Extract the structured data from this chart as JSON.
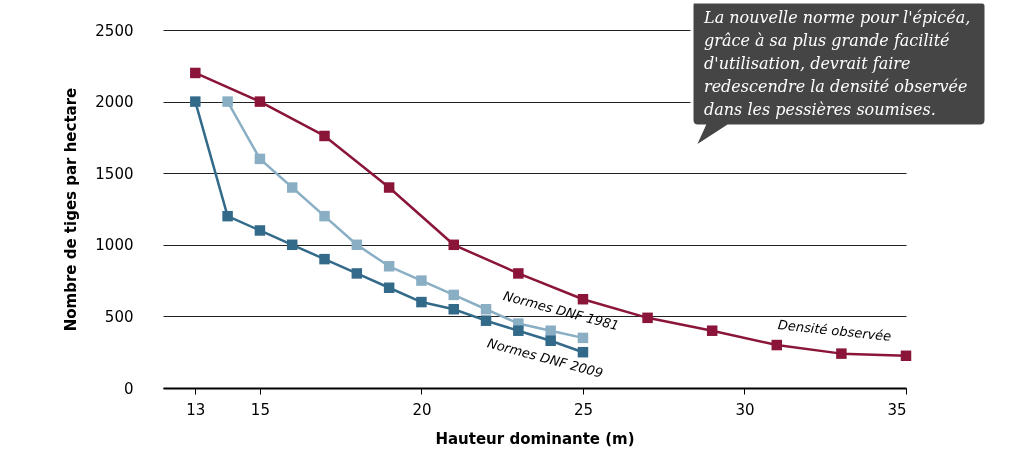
{
  "chart_data": {
    "type": "line",
    "xlabel": "Hauteur dominante (m)",
    "ylabel": "Nombre de tiges par hectare",
    "xlim": [
      12,
      35
    ],
    "xticks": [
      13,
      15,
      20,
      25,
      30,
      35
    ],
    "ylim": [
      0,
      2500
    ],
    "yticks": [
      0,
      500,
      1000,
      1500,
      2000,
      2500
    ],
    "grid": "y",
    "legend": false,
    "marker": "square",
    "line_style": "solid",
    "annotations": [
      "La nouvelle norme pour l'épicéa, grâce à sa plus grande facilité d'utilisation, devrait faire redescendre la densité observée dans les pessières soumises."
    ],
    "series": [
      {
        "name": "Densité observée",
        "color": "#8a1538",
        "x": [
          13,
          15,
          17,
          19,
          21,
          23,
          25,
          27,
          29,
          31,
          33,
          35
        ],
        "values": [
          2200,
          2000,
          1760,
          1400,
          1000,
          800,
          620,
          490,
          400,
          300,
          240,
          225
        ]
      },
      {
        "name": "Normes DNF 1981",
        "color": "#8aafc5",
        "x": [
          14,
          15,
          16,
          17,
          18,
          19,
          20,
          21,
          22,
          23,
          24,
          25
        ],
        "values": [
          2000,
          1600,
          1400,
          1200,
          1000,
          850,
          750,
          650,
          550,
          450,
          400,
          350
        ]
      },
      {
        "name": "Normes DNF 2009",
        "color": "#336a8a",
        "x": [
          13,
          14,
          15,
          16,
          17,
          18,
          19,
          20,
          21,
          22,
          23,
          24,
          25
        ],
        "values": [
          2000,
          1200,
          1100,
          1000,
          900,
          800,
          700,
          600,
          550,
          470,
          400,
          330,
          250
        ]
      }
    ]
  }
}
